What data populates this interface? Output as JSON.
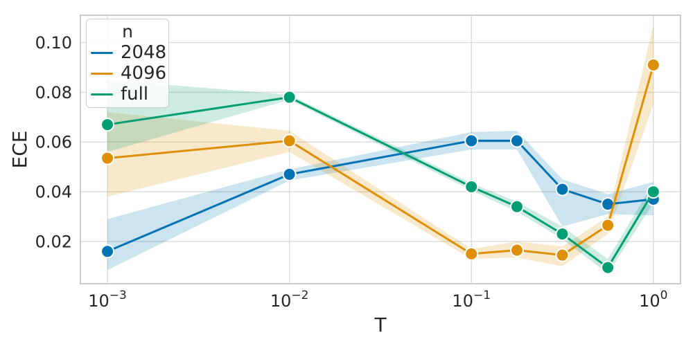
{
  "style": {
    "background": "#ffffff",
    "text_color": "#262626",
    "grid_color": "#dcdcdc",
    "spine_color": "#cccccc",
    "band_opacity": 0.2,
    "line_width": 3,
    "marker_radius": 9
  },
  "chart_data": {
    "type": "line",
    "title": "",
    "xlabel": "T",
    "ylabel": "ECE",
    "x_scale": "log",
    "grid": true,
    "legend_position": "upper left",
    "legend": {
      "title": "n",
      "entries": [
        "2048",
        "4096",
        "full"
      ]
    },
    "xlim": [
      0.00071,
      1.41
    ],
    "ylim": [
      0.003,
      0.111
    ],
    "x": [
      0.001,
      0.01,
      0.1,
      0.178,
      0.316,
      0.562,
      1.0
    ],
    "x_ticks": [
      {
        "value": 0.001,
        "base": "10",
        "exp": "−3"
      },
      {
        "value": 0.01,
        "base": "10",
        "exp": "−2"
      },
      {
        "value": 0.1,
        "base": "10",
        "exp": "−1"
      },
      {
        "value": 1.0,
        "base": "10",
        "exp": "0"
      }
    ],
    "y_ticks": [
      {
        "value": 0.02,
        "label": "0.02"
      },
      {
        "value": 0.04,
        "label": "0.04"
      },
      {
        "value": 0.06,
        "label": "0.06"
      },
      {
        "value": 0.08,
        "label": "0.08"
      },
      {
        "value": 0.1,
        "label": "0.10"
      }
    ],
    "series": [
      {
        "name": "2048",
        "color": "#0173b2",
        "values": [
          0.016,
          0.047,
          0.0605,
          0.0605,
          0.041,
          0.035,
          0.037
        ],
        "band_low": [
          0.0085,
          0.0445,
          0.057,
          0.057,
          0.026,
          0.031,
          0.0305
        ],
        "band_high": [
          0.029,
          0.049,
          0.064,
          0.0645,
          0.045,
          0.039,
          0.044
        ]
      },
      {
        "name": "4096",
        "color": "#de8f05",
        "values": [
          0.0535,
          0.0605,
          0.015,
          0.0165,
          0.0145,
          0.0265,
          0.091
        ],
        "band_low": [
          0.038,
          0.056,
          0.013,
          0.0135,
          0.01,
          0.023,
          0.075
        ],
        "band_high": [
          0.072,
          0.0645,
          0.017,
          0.02,
          0.018,
          0.03,
          0.107
        ]
      },
      {
        "name": "full",
        "color": "#029e73",
        "values": [
          0.067,
          0.078,
          0.042,
          0.034,
          0.023,
          0.0095,
          0.04
        ],
        "band_low": [
          0.056,
          0.077,
          0.0405,
          0.032,
          0.021,
          0.007,
          0.0355
        ],
        "band_high": [
          0.085,
          0.079,
          0.0435,
          0.036,
          0.026,
          0.013,
          0.0435
        ]
      }
    ]
  }
}
